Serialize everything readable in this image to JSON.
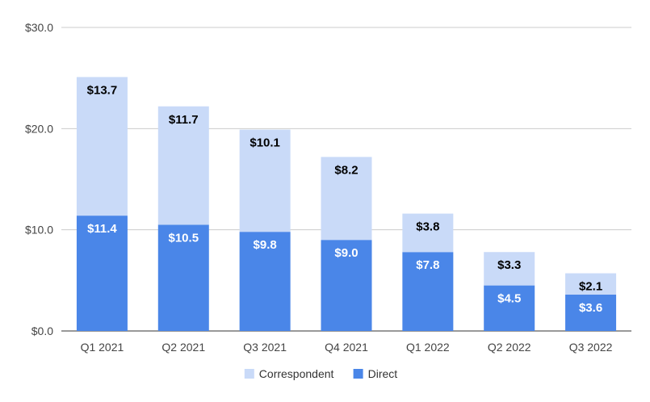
{
  "chart_data": {
    "type": "bar",
    "stacked": true,
    "categories": [
      "Q1 2021",
      "Q2 2021",
      "Q3 2021",
      "Q4 2021",
      "Q1 2022",
      "Q2 2022",
      "Q3 2022"
    ],
    "series": [
      {
        "name": "Direct",
        "values": [
          11.4,
          10.5,
          9.8,
          9.0,
          7.8,
          4.5,
          3.6
        ],
        "labels": [
          "$11.4",
          "$10.5",
          "$9.8",
          "$9.0",
          "$7.8",
          "$4.5",
          "$3.6"
        ],
        "color": "#4a86e8",
        "label_color": "#ffffff"
      },
      {
        "name": "Correspondent",
        "values": [
          13.7,
          11.7,
          10.1,
          8.2,
          3.8,
          3.3,
          2.1
        ],
        "labels": [
          "$13.7",
          "$11.7",
          "$10.1",
          "$8.2",
          "$3.8",
          "$3.3",
          "$2.1"
        ],
        "color": "#c9daf8",
        "label_color": "#000000"
      }
    ],
    "y_ticks": [
      0,
      10,
      20,
      30
    ],
    "y_tick_labels": [
      "$0.0",
      "$10.0",
      "$20.0",
      "$30.0"
    ],
    "ylim": [
      0,
      30
    ],
    "grid": true,
    "legend": {
      "position": "bottom",
      "order": [
        "Correspondent",
        "Direct"
      ]
    },
    "title": "",
    "xlabel": "",
    "ylabel": ""
  }
}
